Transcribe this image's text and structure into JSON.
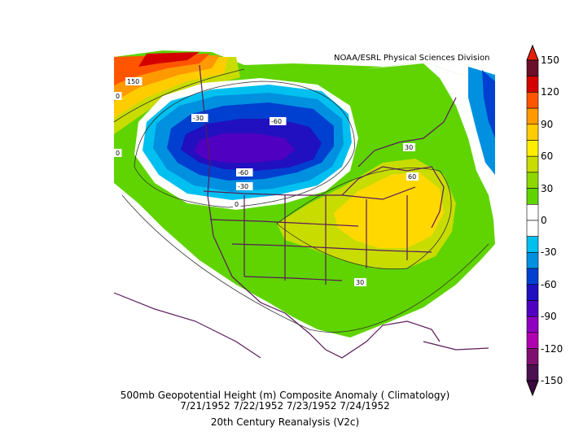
{
  "credit": "NOAA/ESRL Physical Sciences Division",
  "caption": {
    "line1": "500mb Geopotential Height (m) Composite Anomaly ( Climatology)",
    "line2": "7/21/1952 7/22/1952 7/23/1952 7/24/1952",
    "line3": "20th Century Reanalysis (V2c)"
  },
  "colorbar": {
    "labels": [
      "150",
      "120",
      "90",
      "60",
      "30",
      "0",
      "-30",
      "-60",
      "-90",
      "-120",
      "-150"
    ],
    "colors": [
      "#6b0f2a",
      "#d40000",
      "#ff5500",
      "#ff9900",
      "#ffcc00",
      "#ffee00",
      "#c8dc00",
      "#8ed800",
      "#5fd400",
      "#ffffff",
      "#ffffff",
      "#00c0f0",
      "#0090e0",
      "#0040d0",
      "#2010c0",
      "#5000c0",
      "#9000c0",
      "#b000b0",
      "#80106f",
      "#4a1050"
    ]
  },
  "contour_labels": [
    "150",
    "0",
    "-30",
    "-60",
    "0",
    "-60",
    "-30",
    "0",
    "30",
    "60",
    "30"
  ],
  "colors": {
    "state_lines": "#5a1a5a",
    "green": "#5fd400",
    "yellow_green": "#c8dc00",
    "yellow": "#ffd800",
    "blue": "#0040d0",
    "purple": "#5000c0"
  }
}
